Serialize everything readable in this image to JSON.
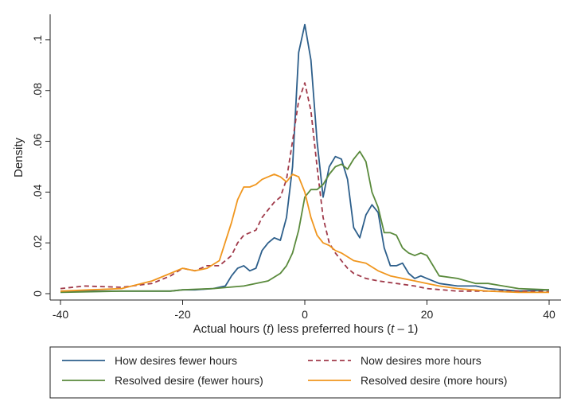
{
  "chart_data": {
    "type": "line",
    "xlabel_parts": [
      "Actual hours (",
      "t",
      ") less preferred hours (",
      "t",
      " – 1)"
    ],
    "ylabel": "Density",
    "xlim": [
      -40,
      40
    ],
    "ylim": [
      0,
      0.11
    ],
    "x_ticks": [
      {
        "value": -40,
        "label": "-40"
      },
      {
        "value": -20,
        "label": "-20"
      },
      {
        "value": 0,
        "label": "0"
      },
      {
        "value": 20,
        "label": "20"
      },
      {
        "value": 40,
        "label": "40"
      }
    ],
    "y_ticks": [
      {
        "value": 0,
        "label": "0"
      },
      {
        "value": 0.02,
        "label": ".02"
      },
      {
        "value": 0.04,
        "label": ".04"
      },
      {
        "value": 0.06,
        "label": ".06"
      },
      {
        "value": 0.08,
        "label": ".08"
      },
      {
        "value": 0.1,
        "label": ".1"
      }
    ],
    "grid": false,
    "legend_position": "bottom",
    "series": [
      {
        "name": "How desires fewer hours",
        "color": "#2d5f8b",
        "dash": "solid",
        "x": [
          -40,
          -30,
          -22,
          -20,
          -18,
          -15,
          -13,
          -12,
          -11,
          -10,
          -9,
          -8,
          -7,
          -6,
          -5,
          -4,
          -3,
          -2,
          -1,
          0,
          1,
          2,
          3,
          4,
          5,
          6,
          7,
          8,
          9,
          10,
          11,
          12,
          13,
          14,
          15,
          16,
          17,
          18,
          19,
          20,
          22,
          25,
          28,
          30,
          35,
          40
        ],
        "y": [
          0.001,
          0.001,
          0.001,
          0.0015,
          0.0015,
          0.002,
          0.003,
          0.007,
          0.01,
          0.011,
          0.009,
          0.01,
          0.017,
          0.02,
          0.022,
          0.021,
          0.03,
          0.05,
          0.095,
          0.106,
          0.092,
          0.06,
          0.038,
          0.05,
          0.054,
          0.053,
          0.045,
          0.026,
          0.022,
          0.031,
          0.035,
          0.032,
          0.018,
          0.011,
          0.011,
          0.012,
          0.008,
          0.006,
          0.007,
          0.006,
          0.004,
          0.003,
          0.003,
          0.002,
          0.001,
          0.0015
        ]
      },
      {
        "name": "Now desires more hours",
        "color": "#a03a4a",
        "dash": "dash",
        "x": [
          -40,
          -36,
          -30,
          -25,
          -22,
          -20,
          -18,
          -16,
          -14,
          -12,
          -11,
          -10,
          -9,
          -8,
          -7,
          -6,
          -5,
          -4,
          -3,
          -2,
          -1,
          0,
          1,
          2,
          3,
          4,
          5,
          6,
          7,
          8,
          10,
          12,
          15,
          18,
          20,
          25,
          30,
          35,
          40
        ],
        "y": [
          0.002,
          0.003,
          0.0025,
          0.004,
          0.007,
          0.01,
          0.009,
          0.011,
          0.011,
          0.015,
          0.02,
          0.023,
          0.024,
          0.025,
          0.03,
          0.033,
          0.036,
          0.038,
          0.045,
          0.06,
          0.076,
          0.083,
          0.072,
          0.05,
          0.03,
          0.02,
          0.016,
          0.013,
          0.01,
          0.008,
          0.006,
          0.005,
          0.004,
          0.003,
          0.002,
          0.001,
          0.001,
          0.001,
          0.0008
        ]
      },
      {
        "name": "Resolved desire (fewer hours)",
        "color": "#5a8a3c",
        "dash": "solid",
        "x": [
          -40,
          -30,
          -22,
          -20,
          -15,
          -10,
          -6,
          -4,
          -3,
          -2,
          -1,
          0,
          1,
          2,
          3,
          4,
          5,
          6,
          7,
          8,
          9,
          10,
          11,
          12,
          13,
          14,
          15,
          16,
          17,
          18,
          19,
          20,
          22,
          25,
          28,
          30,
          35,
          40
        ],
        "y": [
          0.0005,
          0.001,
          0.001,
          0.0015,
          0.002,
          0.003,
          0.005,
          0.008,
          0.011,
          0.016,
          0.025,
          0.038,
          0.041,
          0.041,
          0.043,
          0.047,
          0.05,
          0.051,
          0.049,
          0.053,
          0.056,
          0.052,
          0.04,
          0.034,
          0.024,
          0.024,
          0.023,
          0.018,
          0.016,
          0.015,
          0.016,
          0.015,
          0.007,
          0.006,
          0.004,
          0.004,
          0.002,
          0.0015
        ]
      },
      {
        "name": "Resolved desire (more hours)",
        "color": "#f0961e",
        "dash": "solid",
        "x": [
          -40,
          -35,
          -30,
          -25,
          -22,
          -20,
          -18,
          -16,
          -14,
          -12,
          -11,
          -10,
          -9,
          -8,
          -7,
          -6,
          -5,
          -4,
          -3,
          -2,
          -1,
          0,
          1,
          2,
          3,
          4,
          5,
          6,
          8,
          10,
          12,
          14,
          16,
          18,
          20,
          22,
          25,
          30,
          35,
          40
        ],
        "y": [
          0.001,
          0.0015,
          0.002,
          0.005,
          0.008,
          0.01,
          0.009,
          0.01,
          0.013,
          0.028,
          0.037,
          0.042,
          0.042,
          0.043,
          0.045,
          0.046,
          0.047,
          0.046,
          0.044,
          0.047,
          0.046,
          0.04,
          0.03,
          0.023,
          0.02,
          0.019,
          0.017,
          0.016,
          0.013,
          0.012,
          0.009,
          0.007,
          0.006,
          0.005,
          0.004,
          0.003,
          0.002,
          0.001,
          0.0005,
          0.0005
        ]
      }
    ]
  }
}
